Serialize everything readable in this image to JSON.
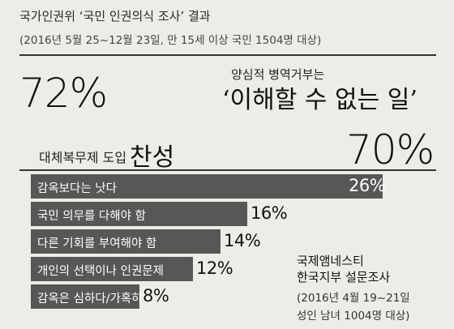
{
  "header": {
    "title": "국가인권위 ‘국민 인권의식 조사’ 결과",
    "subtitle": "(2016년 5월 25~12월 23일, 만 15세 이상 국민 1504명 대상)"
  },
  "stat1": {
    "value": "72%",
    "label_line1": "양심적 병역거부는",
    "label_line2": "‘이해할 수 없는 일’"
  },
  "stat2": {
    "label_small": "대체복무제 도입",
    "label_big": "찬성",
    "value": "70%"
  },
  "chart_data": {
    "type": "bar",
    "orientation": "horizontal",
    "categories": [
      "감옥보다는 낫다",
      "국민 의무를 다해야 함",
      "다른 기회를 부여해야 함",
      "개인의 선택이나 인권문제",
      "감옥은 심하다/가혹하다"
    ],
    "values": [
      26,
      16,
      14,
      12,
      8
    ],
    "value_labels": [
      "26%",
      "16%",
      "14%",
      "12%",
      "8%"
    ],
    "bar_color": "#585756"
  },
  "source": {
    "name_line1": "국제앰네스티",
    "name_line2": "한국지부 설문조사",
    "period_line1": "(2016년 4월 19~21일",
    "period_line2": "성인 남녀 1004명 대상)"
  }
}
